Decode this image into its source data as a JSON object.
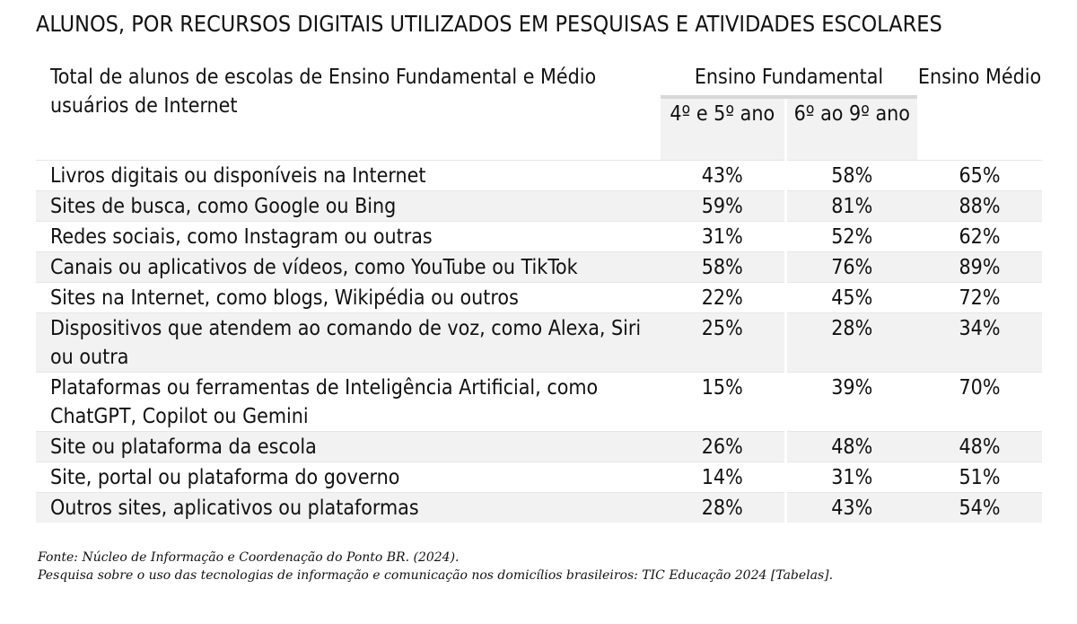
{
  "title": "ALUNOS, POR RECURSOS DIGITAIS UTILIZADOS EM PESQUISAS E ATIVIDADES ESCOLARES",
  "table": {
    "header": {
      "label": "Total de alunos de escolas de Ensino Fundamental e Médio usuários de Internet",
      "group": "Ensino Fundamental",
      "sub_4_5": "4º e 5º ano",
      "sub_6_9": "6º ao 9º ano",
      "medio": "Ensino Médio"
    },
    "rows": [
      {
        "label": "Livros digitais ou disponíveis na Internet",
        "ef45": "43%",
        "ef69": "58%",
        "em": "65%"
      },
      {
        "label": "Sites de busca, como Google ou Bing",
        "ef45": "59%",
        "ef69": "81%",
        "em": "88%"
      },
      {
        "label": "Redes sociais, como Instagram ou outras",
        "ef45": "31%",
        "ef69": "52%",
        "em": "62%"
      },
      {
        "label": "Canais ou aplicativos de vídeos, como YouTube ou TikTok",
        "ef45": "58%",
        "ef69": "76%",
        "em": "89%"
      },
      {
        "label": "Sites na Internet, como blogs, Wikipédia ou outros",
        "ef45": "22%",
        "ef69": "45%",
        "em": "72%"
      },
      {
        "label": "Dispositivos que atendem ao comando de voz, como Alexa, Siri ou outra",
        "ef45": "25%",
        "ef69": "28%",
        "em": "34%"
      },
      {
        "label": "Plataformas ou ferramentas de Inteligência Artificial, como ChatGPT, Copilot ou Gemini",
        "ef45": "15%",
        "ef69": "39%",
        "em": "70%"
      },
      {
        "label": "Site ou plataforma da escola",
        "ef45": "26%",
        "ef69": "48%",
        "em": "48%"
      },
      {
        "label": "Site, portal ou plataforma do governo",
        "ef45": "14%",
        "ef69": "31%",
        "em": "51%"
      },
      {
        "label": "Outros sites, aplicativos ou plataformas",
        "ef45": "28%",
        "ef69": "43%",
        "em": "54%"
      }
    ]
  },
  "source": {
    "line1": "Fonte: Núcleo de Informação e Coordenação do Ponto BR. (2024).",
    "line2": "Pesquisa sobre o uso das tecnologias de informação e comunicação nos domicílios brasileiros: TIC Educação 2024 [Tabelas]."
  }
}
